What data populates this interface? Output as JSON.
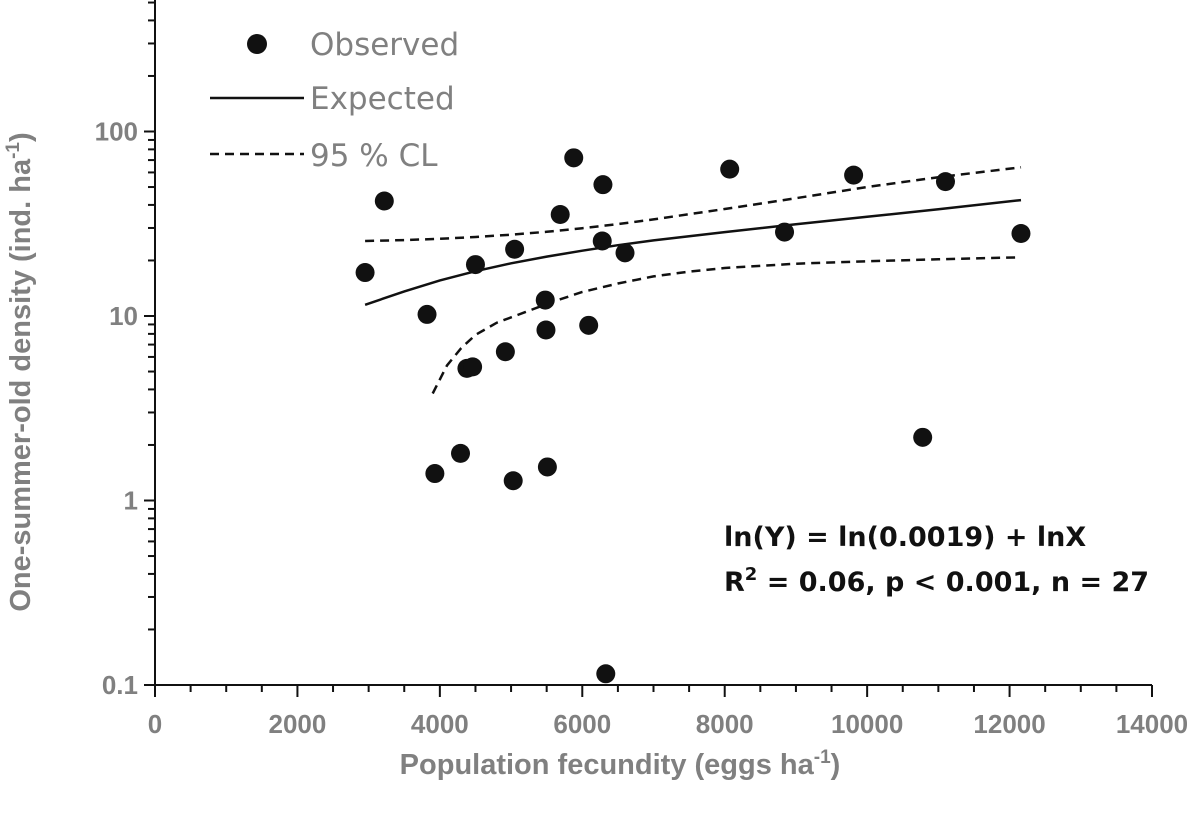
{
  "chart_data": {
    "type": "scatter",
    "xlabel": "Population fecundity (eggs ha",
    "xlabel_sup": "-1",
    "xlabel_end": ")",
    "ylabel": "One-summer-old density (ind. ha",
    "ylabel_sup": "-1",
    "ylabel_end": ")",
    "x_ticks": [
      "0",
      "2000",
      "4000",
      "6000",
      "8000",
      "10000",
      "12000",
      "14000"
    ],
    "y_ticks": [
      "0.1",
      "1",
      "10",
      "100"
    ],
    "xlim": [
      0,
      14000
    ],
    "ylim": [
      0.1,
      500
    ],
    "y_scale": "log",
    "legend_position": "top-left",
    "legend": {
      "observed": "Observed",
      "expected": "Expected",
      "cl": "95 % CL"
    },
    "annotation": {
      "line1": "ln(Y) = ln(0.0019) + lnX",
      "line2_a": "R",
      "line2_sup": "2",
      "line2_b": " = 0.06, p < 0.001, n = 27"
    },
    "series": [
      {
        "name": "Observed",
        "style": "points",
        "points": [
          [
            2950,
            17.2
          ],
          [
            3220,
            42
          ],
          [
            3820,
            10.2
          ],
          [
            3930,
            1.4
          ],
          [
            4290,
            1.8
          ],
          [
            4380,
            5.2
          ],
          [
            4460,
            5.3
          ],
          [
            4500,
            19
          ],
          [
            4920,
            6.4
          ],
          [
            5030,
            1.28
          ],
          [
            5050,
            23
          ],
          [
            5480,
            12.2
          ],
          [
            5490,
            8.4
          ],
          [
            5510,
            1.52
          ],
          [
            5690,
            35.5
          ],
          [
            5880,
            72
          ],
          [
            6090,
            8.9
          ],
          [
            6280,
            25.5
          ],
          [
            6290,
            51.5
          ],
          [
            6330,
            0.115
          ],
          [
            6600,
            22
          ],
          [
            8070,
            62.5
          ],
          [
            8840,
            28.5
          ],
          [
            9810,
            58
          ],
          [
            10780,
            2.2
          ],
          [
            11100,
            53.5
          ],
          [
            12160,
            28
          ]
        ]
      },
      {
        "name": "Expected",
        "style": "solid",
        "points": [
          [
            2950,
            11.5
          ],
          [
            3500,
            13.6
          ],
          [
            4000,
            15.6
          ],
          [
            4500,
            17.5
          ],
          [
            5000,
            19.3
          ],
          [
            5500,
            21
          ],
          [
            6000,
            22.6
          ],
          [
            6500,
            24.2
          ],
          [
            7000,
            25.7
          ],
          [
            8000,
            28.5
          ],
          [
            9000,
            31.4
          ],
          [
            10000,
            34.5
          ],
          [
            11000,
            37.9
          ],
          [
            12160,
            42.5
          ]
        ]
      },
      {
        "name": "95 % CL",
        "style": "dashed",
        "points": [
          [
            2950,
            25.5
          ],
          [
            3500,
            25.8
          ],
          [
            4000,
            26.2
          ],
          [
            4500,
            26.8
          ],
          [
            5000,
            27.6
          ],
          [
            5500,
            28.6
          ],
          [
            6000,
            29.9
          ],
          [
            6500,
            31.5
          ],
          [
            7000,
            33.4
          ],
          [
            8000,
            38
          ],
          [
            9000,
            43.5
          ],
          [
            10000,
            50
          ],
          [
            11000,
            56.5
          ],
          [
            12160,
            64
          ]
        ]
      },
      {
        "name": "95 % CL",
        "style": "dashed",
        "points": [
          [
            3900,
            3.8
          ],
          [
            4100,
            5.4
          ],
          [
            4300,
            6.7
          ],
          [
            4500,
            7.9
          ],
          [
            4800,
            9.2
          ],
          [
            5200,
            10.5
          ],
          [
            5600,
            12
          ],
          [
            6000,
            13.5
          ],
          [
            6500,
            15
          ],
          [
            7000,
            16.4
          ],
          [
            7500,
            17.4
          ],
          [
            8000,
            18.2
          ],
          [
            9000,
            19.2
          ],
          [
            10000,
            19.8
          ],
          [
            11000,
            20.3
          ],
          [
            12160,
            20.8
          ]
        ]
      }
    ]
  }
}
